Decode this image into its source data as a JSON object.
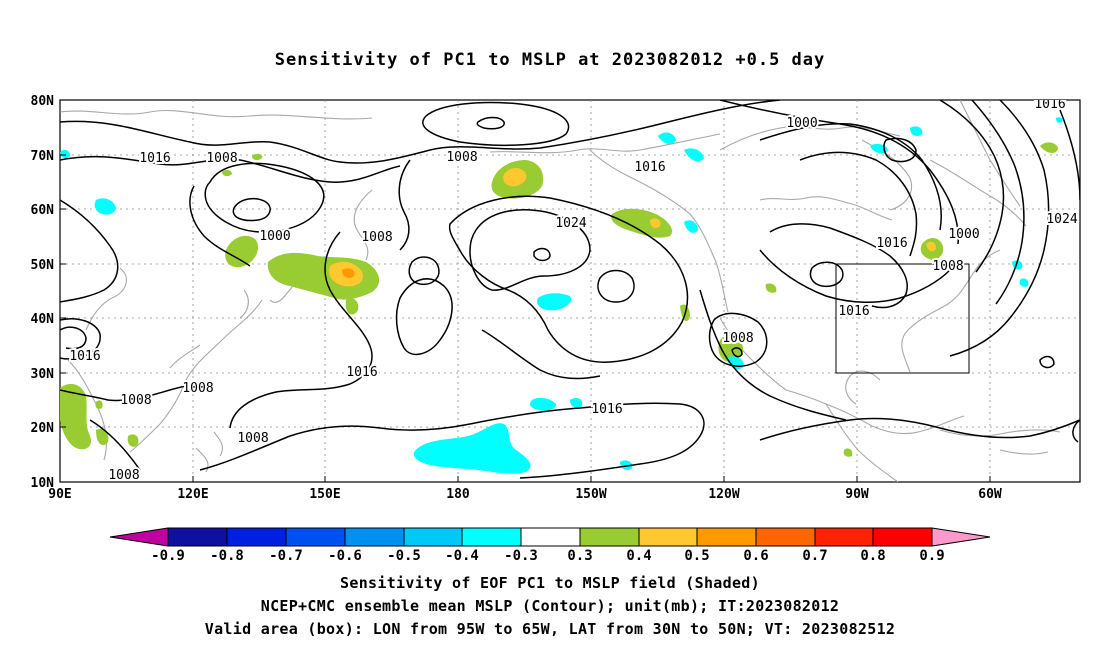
{
  "title": "Sensitivity of PC1 to MSLP at 2023082012 +0.5 day",
  "map": {
    "lat_labels": [
      "80N",
      "70N",
      "60N",
      "50N",
      "40N",
      "30N",
      "20N",
      "10N"
    ],
    "lon_labels": [
      "90E",
      "120E",
      "150E",
      "180",
      "150W",
      "120W",
      "90W",
      "60W"
    ],
    "contour_labels": [
      "1016",
      "1008",
      "1008",
      "1016",
      "1000",
      "1016",
      "1000",
      "1008",
      "1024",
      "1016",
      "1000",
      "1024",
      "1008",
      "1016",
      "1016",
      "1016",
      "1008",
      "1008",
      "1008",
      "1008",
      "1008",
      "1016",
      "1016"
    ],
    "valid_box": {
      "lon_west": -95,
      "lon_east": -65,
      "lat_south": 30,
      "lat_north": 50
    },
    "colors": {
      "contour": "#000000",
      "coast": "#a0a0a0",
      "grid": "#999999"
    }
  },
  "colorbar": {
    "labels": [
      "-0.9",
      "-0.8",
      "-0.7",
      "-0.6",
      "-0.5",
      "-0.4",
      "-0.3",
      "0.3",
      "0.4",
      "0.5",
      "0.6",
      "0.7",
      "0.8",
      "0.9"
    ],
    "colors": [
      "#c000a0",
      "#1010a0",
      "#0020e0",
      "#0050f0",
      "#0090f0",
      "#00c8f8",
      "#00ffff",
      "#ffffff",
      "#99cc33",
      "#ffc830",
      "#ff9900",
      "#ff6600",
      "#ff2200",
      "#ff0000",
      "#ff99cc"
    ]
  },
  "footer": {
    "line1": "Sensitivity of EOF PC1 to MSLP field (Shaded)",
    "line2": "NCEP+CMC ensemble mean MSLP (Contour); unit(mb); IT:2023082012",
    "line3": "Valid area (box): LON from 95W to 65W, LAT from 30N to 50N; VT: 2023082512"
  }
}
